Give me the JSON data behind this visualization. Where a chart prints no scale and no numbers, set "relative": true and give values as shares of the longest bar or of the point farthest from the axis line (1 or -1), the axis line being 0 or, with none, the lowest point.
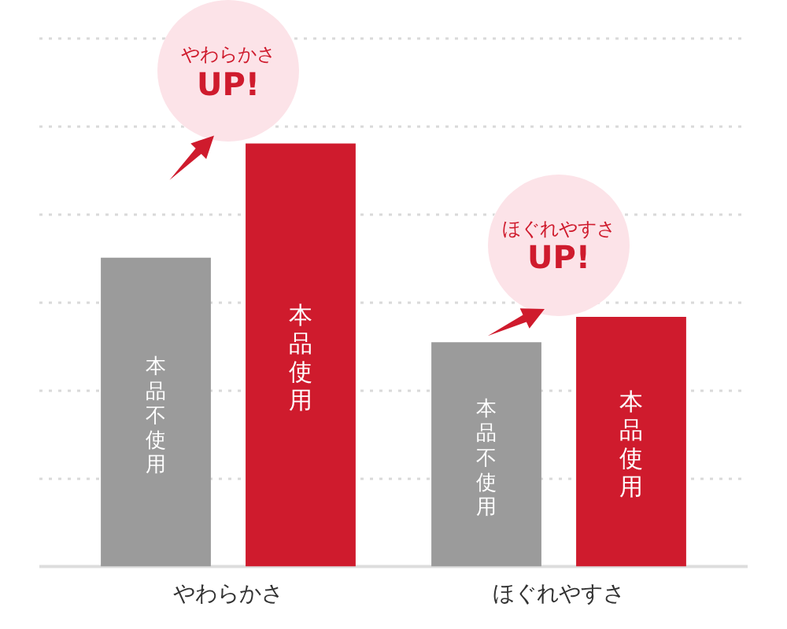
{
  "chart_data": {
    "type": "bar",
    "relative": true,
    "categories": [
      "やわらかさ",
      "ほぐれやすさ"
    ],
    "series": [
      {
        "name": "本品不使用",
        "color": "#9b9b9b",
        "values": [
          0.73,
          0.53
        ]
      },
      {
        "name": "本品使用",
        "color": "#cf1b2d",
        "values": [
          1,
          0.59
        ]
      }
    ],
    "grid": "y",
    "annotations": [
      "やわらかさ\nUP!",
      "ほぐれやすさ\nUP!"
    ]
  }
}
